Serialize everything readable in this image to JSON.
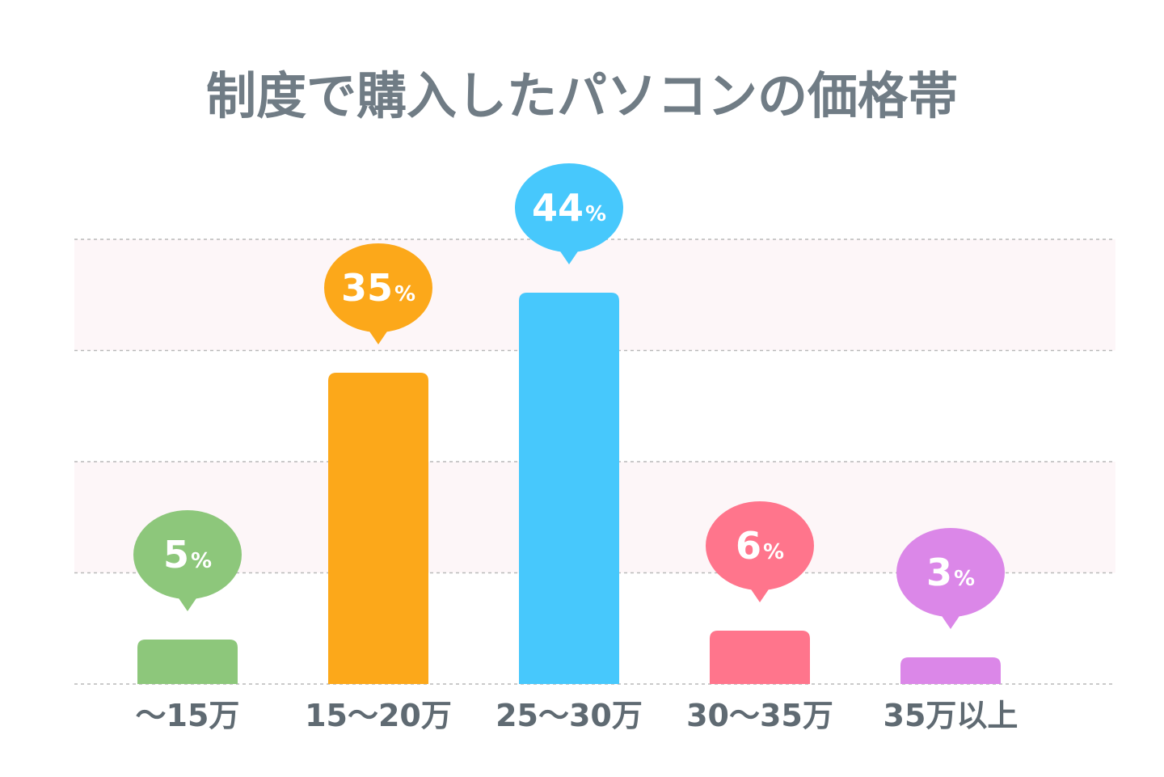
{
  "chart_data": {
    "type": "bar",
    "title": "制度で購入したパソコンの価格帯",
    "categories": [
      "〜15万",
      "15〜20万",
      "25〜30万",
      "30〜35万",
      "35万以上"
    ],
    "values": [
      5,
      35,
      44,
      6,
      3
    ],
    "value_labels": [
      "5",
      "35",
      "44",
      "6",
      "3"
    ],
    "unit": "%",
    "colors": [
      "#8dc77b",
      "#fca81a",
      "#47c8fc",
      "#ff758c",
      "#db87e8"
    ],
    "ylim": [
      0,
      50
    ],
    "gridlines": [
      0,
      12.5,
      25,
      37.5,
      50
    ],
    "band_color": "#fdf6f8",
    "grid_color": "#b9b9b9",
    "axis_labels_color": "#5f6a72",
    "title_color": "#707c85",
    "grid": true,
    "legend": "none",
    "xlabel": "",
    "ylabel": ""
  }
}
